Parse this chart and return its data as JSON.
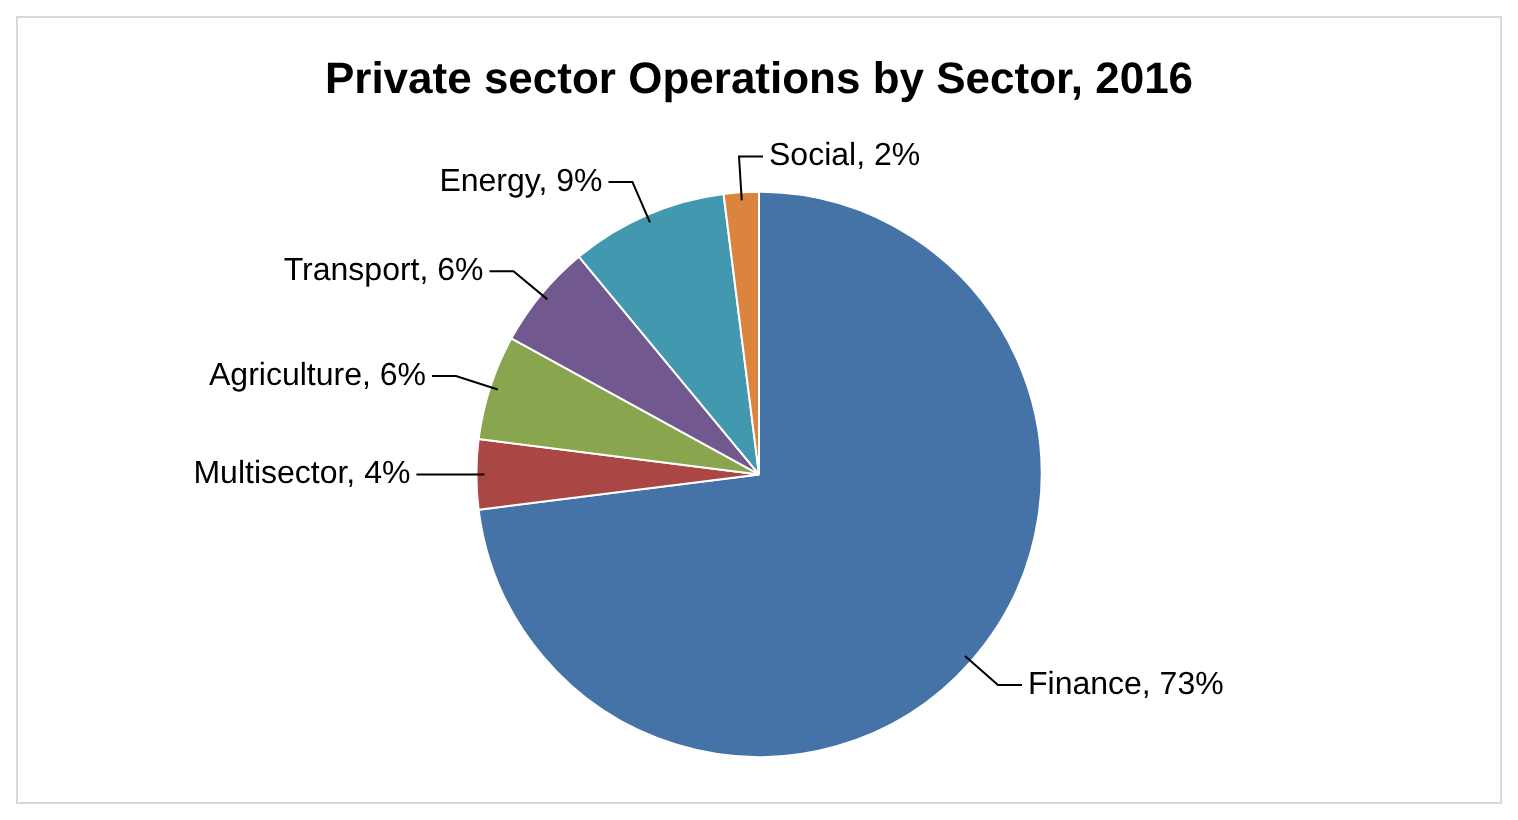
{
  "chart_data": {
    "type": "pie",
    "title": "Private sector Operations by Sector, 2016",
    "categories": [
      "Finance",
      "Multisector",
      "Agriculture",
      "Transport",
      "Energy",
      "Social"
    ],
    "values": [
      73,
      4,
      6,
      6,
      9,
      2
    ],
    "value_labels": [
      "73%",
      "4%",
      "6%",
      "6%",
      "9%",
      "2%"
    ],
    "colors": [
      "#4572a7",
      "#aa4643",
      "#89a54e",
      "#71588f",
      "#4198af",
      "#db843d"
    ],
    "legend": false
  }
}
